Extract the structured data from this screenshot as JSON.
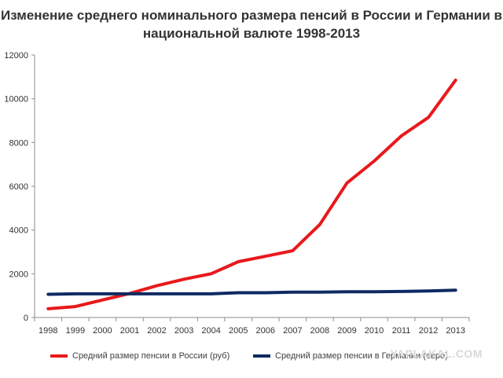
{
  "chart_data": {
    "type": "line",
    "title": "Изменение среднего номинального размера пенсий в России и Германии в",
    "title_line2": "национальной валюте 1998-2013",
    "categories": [
      "1998",
      "1999",
      "2000",
      "2001",
      "2002",
      "2003",
      "2004",
      "2005",
      "2006",
      "2007",
      "2008",
      "2009",
      "2010",
      "2011",
      "2012",
      "2013"
    ],
    "ylim": [
      0,
      12000
    ],
    "yticks": [
      0,
      2000,
      4000,
      6000,
      8000,
      10000,
      12000
    ],
    "grid": false,
    "legend_position": "bottom",
    "series": [
      {
        "name": "Средний размер пенсии в России (руб)",
        "color": "#e8191c",
        "values": [
          400,
          500,
          800,
          1100,
          1450,
          1750,
          2000,
          2550,
          2800,
          3050,
          4250,
          6150,
          7150,
          8300,
          9150,
          10850
        ]
      },
      {
        "name": "Средний размер пенсии в Германии (евро)",
        "color": "#0f2a63",
        "values": [
          1060,
          1080,
          1080,
          1080,
          1080,
          1080,
          1080,
          1130,
          1130,
          1160,
          1160,
          1180,
          1180,
          1190,
          1210,
          1250
        ]
      }
    ]
  },
  "watermark": "YAPLAKAL.COM"
}
